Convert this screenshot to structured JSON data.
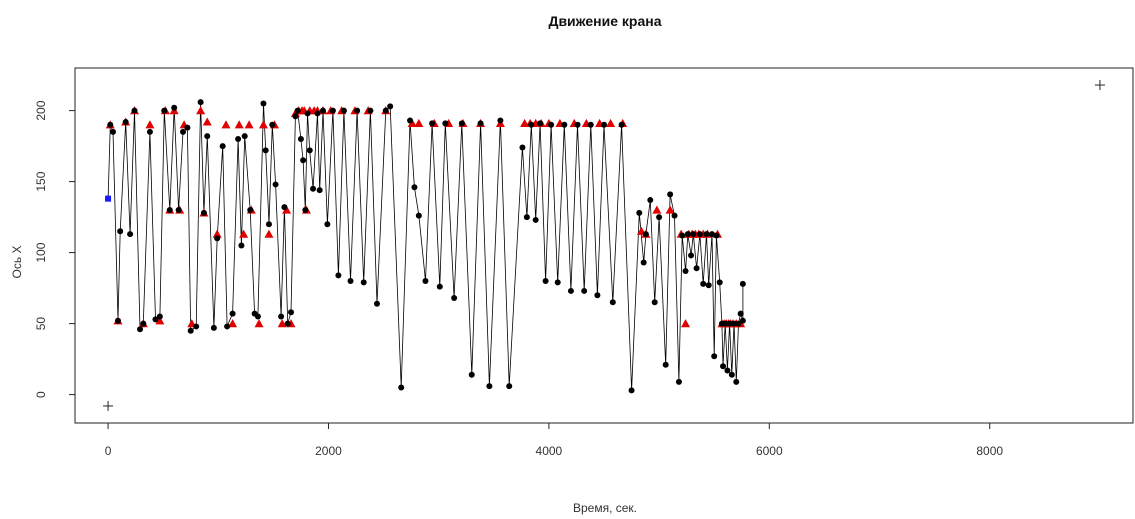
{
  "chart_data": {
    "type": "scatter",
    "title": "Движение крана",
    "xlabel": "Время, сек.",
    "ylabel": "Ось Х",
    "xlim": [
      -300,
      9300
    ],
    "ylim": [
      -20,
      230
    ],
    "x_ticks": [
      0,
      2000,
      4000,
      6000,
      8000
    ],
    "y_ticks": [
      0,
      50,
      100,
      150,
      200
    ],
    "grid": false,
    "colors": {
      "path": "#000000",
      "points": "#000000",
      "targets": "#e00000",
      "start": "#1a1aff"
    },
    "path": [
      [
        0,
        138
      ],
      [
        20,
        190
      ],
      [
        45,
        185
      ],
      [
        90,
        52
      ],
      [
        110,
        115
      ],
      [
        160,
        192
      ],
      [
        200,
        113
      ],
      [
        240,
        200
      ],
      [
        290,
        46
      ],
      [
        320,
        50
      ],
      [
        380,
        185
      ],
      [
        430,
        53
      ],
      [
        470,
        55
      ],
      [
        510,
        200
      ],
      [
        560,
        130
      ],
      [
        600,
        202
      ],
      [
        640,
        130
      ],
      [
        680,
        185
      ],
      [
        720,
        188
      ],
      [
        750,
        45
      ],
      [
        800,
        48
      ],
      [
        840,
        206
      ],
      [
        870,
        128
      ],
      [
        900,
        182
      ],
      [
        960,
        47
      ],
      [
        990,
        110
      ],
      [
        1040,
        175
      ],
      [
        1080,
        48
      ],
      [
        1130,
        57
      ],
      [
        1180,
        180
      ],
      [
        1210,
        105
      ],
      [
        1240,
        182
      ],
      [
        1290,
        130
      ],
      [
        1330,
        57
      ],
      [
        1360,
        55
      ],
      [
        1410,
        205
      ],
      [
        1430,
        172
      ],
      [
        1460,
        120
      ],
      [
        1490,
        190
      ],
      [
        1520,
        148
      ],
      [
        1570,
        55
      ],
      [
        1600,
        132
      ],
      [
        1630,
        50
      ],
      [
        1660,
        58
      ],
      [
        1700,
        196
      ],
      [
        1720,
        200
      ],
      [
        1750,
        180
      ],
      [
        1770,
        165
      ],
      [
        1790,
        130
      ],
      [
        1810,
        198
      ],
      [
        1830,
        172
      ],
      [
        1860,
        145
      ],
      [
        1900,
        198
      ],
      [
        1920,
        144
      ],
      [
        1950,
        200
      ],
      [
        1990,
        120
      ],
      [
        2040,
        200
      ],
      [
        2090,
        84
      ],
      [
        2140,
        200
      ],
      [
        2200,
        80
      ],
      [
        2260,
        200
      ],
      [
        2320,
        79
      ],
      [
        2380,
        200
      ],
      [
        2440,
        64
      ],
      [
        2520,
        200
      ],
      [
        2560,
        203
      ],
      [
        2660,
        5
      ],
      [
        2740,
        193
      ],
      [
        2780,
        146
      ],
      [
        2820,
        126
      ],
      [
        2880,
        80
      ],
      [
        2940,
        191
      ],
      [
        3010,
        76
      ],
      [
        3060,
        191
      ],
      [
        3140,
        68
      ],
      [
        3210,
        191
      ],
      [
        3300,
        14
      ],
      [
        3380,
        191
      ],
      [
        3460,
        6
      ],
      [
        3560,
        193
      ],
      [
        3640,
        6
      ],
      [
        3760,
        174
      ],
      [
        3800,
        125
      ],
      [
        3840,
        190
      ],
      [
        3880,
        123
      ],
      [
        3920,
        191
      ],
      [
        3970,
        80
      ],
      [
        4020,
        190
      ],
      [
        4080,
        79
      ],
      [
        4140,
        190
      ],
      [
        4200,
        73
      ],
      [
        4260,
        190
      ],
      [
        4320,
        73
      ],
      [
        4380,
        190
      ],
      [
        4440,
        70
      ],
      [
        4500,
        190
      ],
      [
        4580,
        65
      ],
      [
        4660,
        190
      ],
      [
        4750,
        3
      ],
      [
        4820,
        128
      ],
      [
        4860,
        93
      ],
      [
        4880,
        113
      ],
      [
        4920,
        137
      ],
      [
        4960,
        65
      ],
      [
        5000,
        125
      ],
      [
        5060,
        21
      ],
      [
        5100,
        141
      ],
      [
        5140,
        126
      ],
      [
        5180,
        9
      ],
      [
        5210,
        112
      ],
      [
        5240,
        87
      ],
      [
        5260,
        113
      ],
      [
        5290,
        98
      ],
      [
        5310,
        113
      ],
      [
        5340,
        89
      ],
      [
        5370,
        113
      ],
      [
        5400,
        78
      ],
      [
        5430,
        113
      ],
      [
        5450,
        77
      ],
      [
        5480,
        113
      ],
      [
        5500,
        27
      ],
      [
        5520,
        112
      ],
      [
        5550,
        79
      ],
      [
        5570,
        50
      ],
      [
        5580,
        20
      ],
      [
        5600,
        50
      ],
      [
        5620,
        17
      ],
      [
        5640,
        50
      ],
      [
        5660,
        14
      ],
      [
        5680,
        50
      ],
      [
        5700,
        9
      ],
      [
        5720,
        50
      ],
      [
        5740,
        57
      ],
      [
        5760,
        52
      ],
      [
        5760,
        78
      ]
    ],
    "targets": [
      [
        20,
        190
      ],
      [
        90,
        52
      ],
      [
        160,
        192
      ],
      [
        240,
        200
      ],
      [
        320,
        50
      ],
      [
        380,
        190
      ],
      [
        470,
        52
      ],
      [
        520,
        200
      ],
      [
        560,
        130
      ],
      [
        600,
        200
      ],
      [
        650,
        130
      ],
      [
        690,
        190
      ],
      [
        760,
        50
      ],
      [
        840,
        200
      ],
      [
        870,
        128
      ],
      [
        900,
        192
      ],
      [
        990,
        113
      ],
      [
        1070,
        190
      ],
      [
        1130,
        50
      ],
      [
        1190,
        190
      ],
      [
        1230,
        113
      ],
      [
        1280,
        190
      ],
      [
        1300,
        130
      ],
      [
        1370,
        50
      ],
      [
        1410,
        190
      ],
      [
        1460,
        113
      ],
      [
        1510,
        190
      ],
      [
        1580,
        50
      ],
      [
        1620,
        130
      ],
      [
        1660,
        50
      ],
      [
        1700,
        198
      ],
      [
        1730,
        200
      ],
      [
        1760,
        200
      ],
      [
        1780,
        200
      ],
      [
        1800,
        130
      ],
      [
        1830,
        200
      ],
      [
        1870,
        200
      ],
      [
        1900,
        200
      ],
      [
        1950,
        200
      ],
      [
        2020,
        200
      ],
      [
        2120,
        200
      ],
      [
        2240,
        200
      ],
      [
        2360,
        200
      ],
      [
        2520,
        200
      ],
      [
        2760,
        191
      ],
      [
        2820,
        191
      ],
      [
        2960,
        191
      ],
      [
        3090,
        191
      ],
      [
        3220,
        191
      ],
      [
        3380,
        191
      ],
      [
        3560,
        191
      ],
      [
        3780,
        191
      ],
      [
        3830,
        191
      ],
      [
        3880,
        191
      ],
      [
        3930,
        191
      ],
      [
        4000,
        191
      ],
      [
        4100,
        191
      ],
      [
        4230,
        191
      ],
      [
        4340,
        191
      ],
      [
        4460,
        191
      ],
      [
        4560,
        191
      ],
      [
        4670,
        191
      ],
      [
        4840,
        115
      ],
      [
        4880,
        113
      ],
      [
        4980,
        130
      ],
      [
        5100,
        130
      ],
      [
        5200,
        113
      ],
      [
        5240,
        50
      ],
      [
        5270,
        113
      ],
      [
        5300,
        113
      ],
      [
        5330,
        113
      ],
      [
        5360,
        113
      ],
      [
        5400,
        113
      ],
      [
        5440,
        113
      ],
      [
        5530,
        113
      ],
      [
        5570,
        50
      ],
      [
        5590,
        50
      ],
      [
        5610,
        50
      ],
      [
        5630,
        50
      ],
      [
        5650,
        50
      ],
      [
        5670,
        50
      ],
      [
        5700,
        50
      ],
      [
        5740,
        50
      ]
    ],
    "start_point": [
      0,
      138
    ],
    "crosses": [
      [
        0,
        -8
      ],
      [
        9000,
        218
      ]
    ]
  }
}
